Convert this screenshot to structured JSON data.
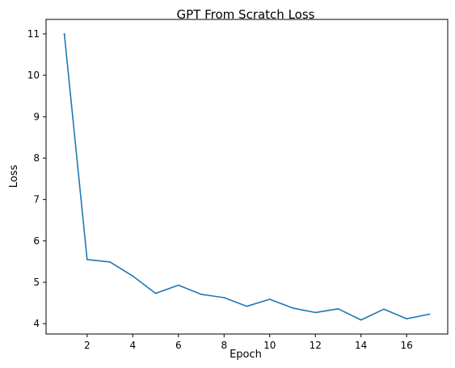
{
  "chart_data": {
    "type": "line",
    "title": "GPT From Scratch Loss",
    "xlabel": "Epoch",
    "ylabel": "Loss",
    "xlim": [
      0.2,
      17.8
    ],
    "ylim": [
      3.75,
      11.35
    ],
    "xticks": [
      2,
      4,
      6,
      8,
      10,
      12,
      14,
      16
    ],
    "yticks": [
      4,
      5,
      6,
      7,
      8,
      9,
      10,
      11
    ],
    "grid": false,
    "series": [
      {
        "color": "#1f77b4",
        "x": [
          1,
          2,
          3,
          4,
          5,
          6,
          7,
          8,
          9,
          10,
          11,
          12,
          13,
          14,
          15,
          16,
          17
        ],
        "y": [
          11.0,
          5.55,
          5.49,
          5.15,
          4.73,
          4.93,
          4.71,
          4.63,
          4.42,
          4.59,
          4.38,
          4.27,
          4.36,
          4.09,
          4.35,
          4.12,
          4.23
        ]
      }
    ]
  }
}
